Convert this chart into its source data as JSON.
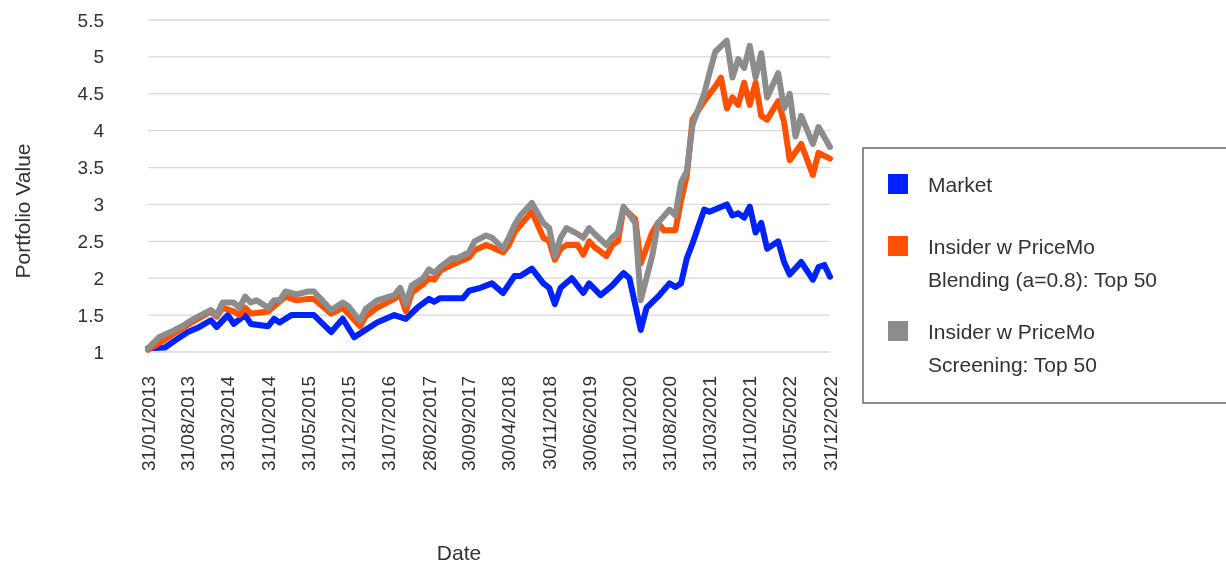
{
  "chart_data": {
    "type": "line",
    "xlabel": "Date",
    "ylabel": "Portfolio Value",
    "xlim": [
      "2013-01",
      "2022-12"
    ],
    "xticks": [
      {
        "value": "2013-01",
        "label": "31/01/2013"
      },
      {
        "value": "2013-08",
        "label": "31/08/2013"
      },
      {
        "value": "2014-03",
        "label": "31/03/2014"
      },
      {
        "value": "2014-10",
        "label": "31/10/2014"
      },
      {
        "value": "2015-05",
        "label": "31/05/2015"
      },
      {
        "value": "2015-12",
        "label": "31/12/2015"
      },
      {
        "value": "2016-07",
        "label": "31/07/2016"
      },
      {
        "value": "2017-02",
        "label": "28/02/2017"
      },
      {
        "value": "2017-09",
        "label": "30/09/2017"
      },
      {
        "value": "2018-04",
        "label": "30/04/2018"
      },
      {
        "value": "2018-11",
        "label": "30/11/2018"
      },
      {
        "value": "2019-06",
        "label": "30/06/2019"
      },
      {
        "value": "2020-01",
        "label": "31/01/2020"
      },
      {
        "value": "2020-08",
        "label": "31/08/2020"
      },
      {
        "value": "2021-03",
        "label": "31/03/2021"
      },
      {
        "value": "2021-10",
        "label": "31/10/2021"
      },
      {
        "value": "2022-05",
        "label": "31/05/2022"
      },
      {
        "value": "2022-12",
        "label": "31/12/2022"
      }
    ],
    "ylim": [
      1,
      5.5
    ],
    "yticks": [
      1,
      1.5,
      2,
      2.5,
      3,
      3.5,
      4,
      4.5,
      5,
      5.5
    ],
    "grid": "y",
    "legend": "right",
    "marker": "none",
    "line_style": "solid",
    "series": [
      {
        "name": "Market",
        "color": "#0022ff",
        "x": [
          "2013-01",
          "2013-04",
          "2013-06",
          "2013-08",
          "2013-10",
          "2013-12",
          "2014-01",
          "2014-03",
          "2014-04",
          "2014-06",
          "2014-07",
          "2014-10",
          "2014-11",
          "2014-12",
          "2015-02",
          "2015-06",
          "2015-09",
          "2015-11",
          "2016-01",
          "2016-03",
          "2016-05",
          "2016-08",
          "2016-10",
          "2016-12",
          "2017-02",
          "2017-03",
          "2017-04",
          "2017-08",
          "2017-09",
          "2017-11",
          "2018-01",
          "2018-03",
          "2018-05",
          "2018-06",
          "2018-08",
          "2018-10",
          "2018-11",
          "2018-12",
          "2019-01",
          "2019-03",
          "2019-04",
          "2019-05",
          "2019-06",
          "2019-08",
          "2019-10",
          "2019-12",
          "2020-01",
          "2020-03",
          "2020-04",
          "2020-06",
          "2020-08",
          "2020-09",
          "2020-10",
          "2020-11",
          "2020-12",
          "2021-02",
          "2021-03",
          "2021-06",
          "2021-07",
          "2021-08",
          "2021-09",
          "2021-10",
          "2021-11",
          "2021-12",
          "2022-01",
          "2022-03",
          "2022-04",
          "2022-05",
          "2022-07",
          "2022-09",
          "2022-10",
          "2022-11",
          "2022-12"
        ],
        "values": [
          1.05,
          1.06,
          1.17,
          1.27,
          1.34,
          1.43,
          1.34,
          1.5,
          1.38,
          1.5,
          1.38,
          1.35,
          1.45,
          1.4,
          1.5,
          1.5,
          1.27,
          1.45,
          1.2,
          1.3,
          1.4,
          1.5,
          1.45,
          1.6,
          1.72,
          1.68,
          1.73,
          1.73,
          1.83,
          1.87,
          1.93,
          1.8,
          2.03,
          2.03,
          2.13,
          1.93,
          1.87,
          1.65,
          1.87,
          2.0,
          1.9,
          1.8,
          1.93,
          1.77,
          1.9,
          2.07,
          2.0,
          1.3,
          1.6,
          1.75,
          1.93,
          1.88,
          1.93,
          2.27,
          2.47,
          2.93,
          2.9,
          3.0,
          2.85,
          2.88,
          2.82,
          2.97,
          2.62,
          2.75,
          2.4,
          2.5,
          2.22,
          2.05,
          2.22,
          1.98,
          2.15,
          2.18,
          2.02
        ]
      },
      {
        "name": "Insider w PriceMo Blending (a=0.8): Top 50",
        "color": "#ff5000",
        "x": [
          "2013-01",
          "2013-03",
          "2013-05",
          "2013-07",
          "2013-09",
          "2013-12",
          "2014-01",
          "2014-02",
          "2014-04",
          "2014-05",
          "2014-06",
          "2014-07",
          "2014-10",
          "2014-11",
          "2015-01",
          "2015-03",
          "2015-05",
          "2015-06",
          "2015-09",
          "2015-11",
          "2016-02",
          "2016-03",
          "2016-05",
          "2016-08",
          "2016-09",
          "2016-10",
          "2016-11",
          "2017-01",
          "2017-02",
          "2017-03",
          "2017-04",
          "2017-06",
          "2017-09",
          "2017-10",
          "2017-12",
          "2018-01",
          "2018-03",
          "2018-04",
          "2018-05",
          "2018-06",
          "2018-08",
          "2018-10",
          "2018-11",
          "2018-12",
          "2019-01",
          "2019-02",
          "2019-04",
          "2019-05",
          "2019-06",
          "2019-07",
          "2019-09",
          "2019-10",
          "2019-11",
          "2019-12",
          "2020-02",
          "2020-03",
          "2020-05",
          "2020-06",
          "2020-07",
          "2020-09",
          "2020-10",
          "2020-11",
          "2020-12",
          "2021-02",
          "2021-04",
          "2021-05",
          "2021-06",
          "2021-07",
          "2021-08",
          "2021-09",
          "2021-10",
          "2021-11",
          "2021-12",
          "2022-01",
          "2022-03",
          "2022-04",
          "2022-05",
          "2022-07",
          "2022-09",
          "2022-10",
          "2022-12"
        ],
        "values": [
          1.03,
          1.12,
          1.22,
          1.32,
          1.42,
          1.55,
          1.48,
          1.6,
          1.55,
          1.5,
          1.6,
          1.52,
          1.55,
          1.62,
          1.75,
          1.7,
          1.72,
          1.72,
          1.52,
          1.6,
          1.35,
          1.48,
          1.6,
          1.72,
          1.78,
          1.55,
          1.8,
          1.92,
          2.0,
          1.98,
          2.1,
          2.18,
          2.28,
          2.38,
          2.45,
          2.42,
          2.35,
          2.45,
          2.62,
          2.72,
          2.9,
          2.55,
          2.5,
          2.25,
          2.4,
          2.45,
          2.45,
          2.32,
          2.5,
          2.42,
          2.3,
          2.45,
          2.5,
          2.95,
          2.8,
          2.2,
          2.62,
          2.75,
          2.65,
          2.65,
          3.05,
          3.4,
          4.15,
          4.4,
          4.6,
          4.72,
          4.3,
          4.45,
          4.35,
          4.65,
          4.35,
          4.65,
          4.2,
          4.15,
          4.4,
          4.12,
          3.6,
          3.82,
          3.4,
          3.7,
          3.62
        ]
      },
      {
        "name": "Insider w PriceMo Screening: Top 50",
        "color": "#8c8c8c",
        "x": [
          "2013-01",
          "2013-03",
          "2013-05",
          "2013-07",
          "2013-09",
          "2013-12",
          "2014-01",
          "2014-02",
          "2014-04",
          "2014-05",
          "2014-06",
          "2014-07",
          "2014-08",
          "2014-10",
          "2014-11",
          "2014-12",
          "2015-01",
          "2015-03",
          "2015-05",
          "2015-06",
          "2015-09",
          "2015-11",
          "2015-12",
          "2016-02",
          "2016-03",
          "2016-05",
          "2016-08",
          "2016-09",
          "2016-10",
          "2016-11",
          "2017-01",
          "2017-02",
          "2017-03",
          "2017-04",
          "2017-06",
          "2017-07",
          "2017-09",
          "2017-10",
          "2017-12",
          "2018-01",
          "2018-03",
          "2018-04",
          "2018-05",
          "2018-06",
          "2018-08",
          "2018-10",
          "2018-11",
          "2018-12",
          "2019-01",
          "2019-02",
          "2019-04",
          "2019-05",
          "2019-06",
          "2019-07",
          "2019-09",
          "2019-10",
          "2019-11",
          "2019-12",
          "2020-02",
          "2020-03",
          "2020-05",
          "2020-06",
          "2020-08",
          "2020-09",
          "2020-10",
          "2020-11",
          "2020-12",
          "2021-02",
          "2021-03",
          "2021-04",
          "2021-06",
          "2021-07",
          "2021-08",
          "2021-09",
          "2021-10",
          "2021-11",
          "2021-12",
          "2022-01",
          "2022-03",
          "2022-04",
          "2022-05",
          "2022-06",
          "2022-07",
          "2022-09",
          "2022-10",
          "2022-12"
        ],
        "values": [
          1.05,
          1.2,
          1.27,
          1.35,
          1.45,
          1.57,
          1.5,
          1.67,
          1.67,
          1.6,
          1.75,
          1.67,
          1.7,
          1.6,
          1.7,
          1.7,
          1.82,
          1.78,
          1.82,
          1.82,
          1.57,
          1.67,
          1.62,
          1.42,
          1.58,
          1.7,
          1.77,
          1.87,
          1.65,
          1.9,
          2.0,
          2.12,
          2.07,
          2.15,
          2.27,
          2.27,
          2.35,
          2.5,
          2.58,
          2.55,
          2.4,
          2.55,
          2.72,
          2.85,
          3.02,
          2.75,
          2.68,
          2.3,
          2.55,
          2.68,
          2.6,
          2.55,
          2.68,
          2.6,
          2.45,
          2.55,
          2.62,
          2.97,
          2.75,
          1.7,
          2.3,
          2.75,
          2.93,
          2.85,
          3.3,
          3.45,
          4.08,
          4.5,
          4.78,
          5.07,
          5.22,
          4.72,
          4.97,
          4.85,
          5.15,
          4.72,
          5.05,
          4.45,
          4.78,
          4.3,
          4.5,
          3.92,
          4.2,
          3.82,
          4.05,
          3.78
        ]
      }
    ]
  }
}
